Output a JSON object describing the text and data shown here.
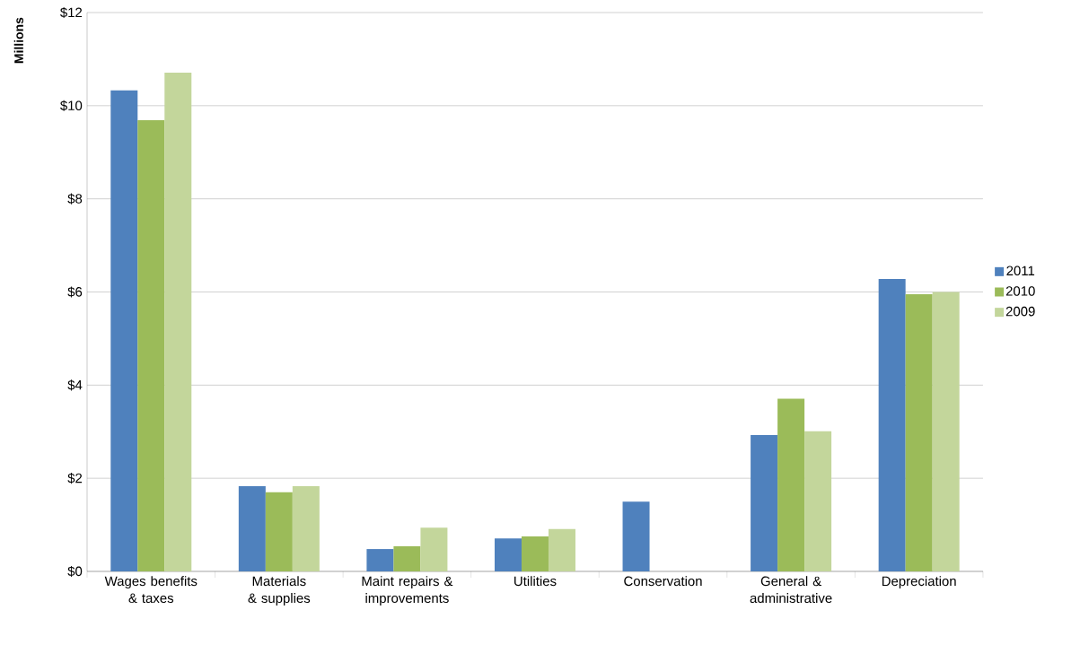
{
  "chart_data": {
    "type": "bar",
    "ylabel": "Millions",
    "categories": [
      "Wages benefits & taxes",
      "Materials & supplies",
      "Maint repairs & improvements",
      "Utilities",
      "Conservation",
      "General & administrative",
      "Depreciation"
    ],
    "series": [
      {
        "name": "2011",
        "color": "#4f81bd",
        "values": [
          10.33,
          1.83,
          0.48,
          0.71,
          1.5,
          2.93,
          6.28
        ]
      },
      {
        "name": "2010",
        "color": "#9bbb59",
        "values": [
          9.69,
          1.7,
          0.54,
          0.75,
          null,
          3.71,
          5.95
        ]
      },
      {
        "name": "2009",
        "color": "#c3d69b",
        "values": [
          10.71,
          1.83,
          0.94,
          0.91,
          null,
          3.01,
          6.0
        ]
      }
    ],
    "ylim": [
      0,
      12
    ],
    "yticks": [
      {
        "value": 0,
        "label": "$0"
      },
      {
        "value": 2,
        "label": "$2"
      },
      {
        "value": 4,
        "label": "$4"
      },
      {
        "value": 6,
        "label": "$6"
      },
      {
        "value": 8,
        "label": "$8"
      },
      {
        "value": 10,
        "label": "$10"
      },
      {
        "value": 12,
        "label": "$12"
      }
    ],
    "grid": "y",
    "legend": "right"
  }
}
